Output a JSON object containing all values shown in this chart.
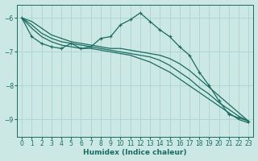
{
  "xlabel": "Humidex (Indice chaleur)",
  "ylabel": "",
  "bg_color": "#cce8e4",
  "grid_color": "#aad4cf",
  "line_color": "#1a6b60",
  "xlim": [
    -0.5,
    23.5
  ],
  "ylim": [
    -9.5,
    -5.6
  ],
  "yticks": [
    -9,
    -8,
    -7,
    -6
  ],
  "xticks": [
    0,
    1,
    2,
    3,
    4,
    5,
    6,
    7,
    8,
    9,
    10,
    11,
    12,
    13,
    14,
    15,
    16,
    17,
    18,
    19,
    20,
    21,
    22,
    23
  ],
  "series": [
    {
      "x": [
        0,
        1,
        2,
        3,
        4,
        5,
        6,
        7,
        8,
        9,
        10,
        11,
        12,
        13,
        14,
        15,
        16,
        17,
        18,
        19,
        20,
        21,
        22,
        23
      ],
      "y": [
        -6.0,
        -6.55,
        -6.75,
        -6.85,
        -6.9,
        -6.75,
        -6.9,
        -6.85,
        -6.6,
        -6.55,
        -6.2,
        -6.05,
        -5.85,
        -6.1,
        -6.35,
        -6.55,
        -6.85,
        -7.1,
        -7.6,
        -8.0,
        -8.45,
        -8.85,
        -8.95,
        -9.05
      ],
      "marker": true
    },
    {
      "x": [
        0,
        1,
        2,
        3,
        4,
        5,
        6,
        7,
        8,
        9,
        10,
        11,
        12,
        13,
        14,
        15,
        16,
        17,
        18,
        19,
        20,
        21,
        22,
        23
      ],
      "y": [
        -6.0,
        -6.1,
        -6.3,
        -6.5,
        -6.6,
        -6.7,
        -6.75,
        -6.8,
        -6.85,
        -6.9,
        -6.9,
        -6.95,
        -7.0,
        -7.05,
        -7.1,
        -7.2,
        -7.35,
        -7.55,
        -7.8,
        -8.05,
        -8.3,
        -8.55,
        -8.8,
        -9.05
      ],
      "marker": false
    },
    {
      "x": [
        0,
        1,
        2,
        3,
        4,
        5,
        6,
        7,
        8,
        9,
        10,
        11,
        12,
        13,
        14,
        15,
        16,
        17,
        18,
        19,
        20,
        21,
        22,
        23
      ],
      "y": [
        -6.0,
        -6.2,
        -6.45,
        -6.6,
        -6.7,
        -6.75,
        -6.8,
        -6.85,
        -6.9,
        -6.95,
        -7.0,
        -7.05,
        -7.1,
        -7.15,
        -7.25,
        -7.4,
        -7.6,
        -7.8,
        -8.05,
        -8.25,
        -8.5,
        -8.7,
        -8.9,
        -9.05
      ],
      "marker": false
    },
    {
      "x": [
        0,
        1,
        2,
        3,
        4,
        5,
        6,
        7,
        8,
        9,
        10,
        11,
        12,
        13,
        14,
        15,
        16,
        17,
        18,
        19,
        20,
        21,
        22,
        23
      ],
      "y": [
        -6.0,
        -6.3,
        -6.55,
        -6.7,
        -6.8,
        -6.85,
        -6.9,
        -6.9,
        -6.95,
        -7.0,
        -7.05,
        -7.1,
        -7.2,
        -7.3,
        -7.45,
        -7.6,
        -7.8,
        -8.0,
        -8.2,
        -8.4,
        -8.6,
        -8.8,
        -9.0,
        -9.1
      ],
      "marker": false
    }
  ]
}
